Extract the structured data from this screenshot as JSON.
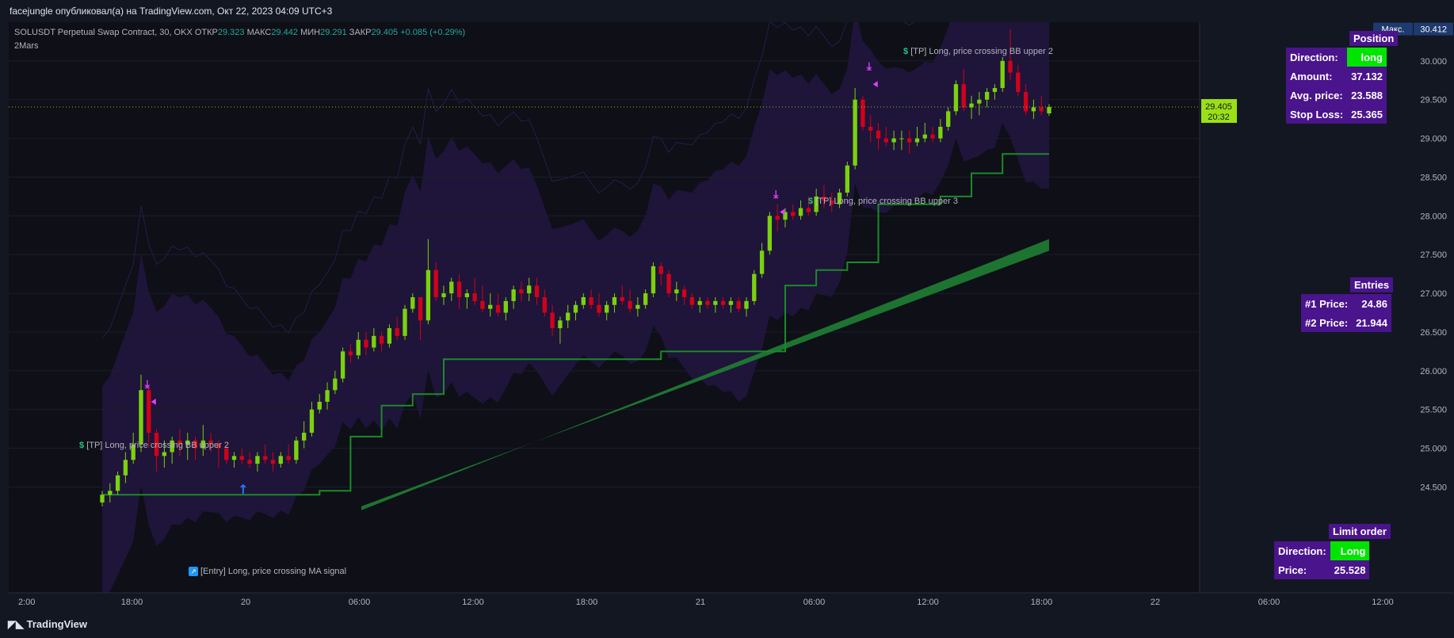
{
  "caption": "facejungle опубликовал(а) на TradingView.com, Окт 22, 2023 04:09 UTC+3",
  "legend": {
    "symbol": "SOLUSDT Perpetual Swap Contract, 30, OKX",
    "open_label": "ОТКР",
    "open": "29.323",
    "high_label": "МАКС",
    "high": "29.442",
    "low_label": "МИН",
    "low": "29.291",
    "close_label": "ЗАКР",
    "close": "29.405",
    "change": "+0.085 (+0.29%)"
  },
  "indicator_name": "2Mars",
  "annotations": {
    "tp1": "[TP] Long, price crossing BB upper 2",
    "entry": "[Entry] Long, price crossing MA signal",
    "tp2": "[TP] Long, price crossing BB upper 3",
    "tp3": "[TP] Long, price crossing BB upper 2",
    "dollar": "$",
    "entry_icon": "↗"
  },
  "position_panel": {
    "title": "Position",
    "rows": [
      {
        "label": "Direction:",
        "value": "long"
      },
      {
        "label": "Amount:",
        "value": "37.132"
      },
      {
        "label": "Avg. price:",
        "value": "23.588"
      },
      {
        "label": "Stop Loss:",
        "value": "25.365"
      }
    ]
  },
  "entries_panel": {
    "title": "Entries",
    "rows": [
      {
        "label": "#1 Price:",
        "value": "24.86"
      },
      {
        "label": "#2 Price:",
        "value": "21.944"
      }
    ]
  },
  "limit_panel": {
    "title": "Limit order",
    "rows": [
      {
        "label": "Direction:",
        "value": "Long"
      },
      {
        "label": "Price:",
        "value": "25.528"
      }
    ]
  },
  "brand": "TradingView",
  "colors": {
    "background": "#0e0f17",
    "candle_up": "#7bd10e",
    "candle_down": "#d0021b",
    "trail_line": "#1b8a2a",
    "ma_ribbon": "#1f7a32",
    "bb_band": "#2d1a55",
    "panel_bg": "#4a148c",
    "highlight_green": "#00e500",
    "tp_marker": "#e040fb",
    "entry_arrow": "#2979ff"
  },
  "chart_data": {
    "type": "candlestick",
    "timeframe": "30",
    "y_axis": {
      "ticks": [
        "30.000",
        "29.500",
        "29.000",
        "28.500",
        "28.000",
        "27.500",
        "27.000",
        "26.500",
        "26.000",
        "25.500",
        "25.000",
        "24.500"
      ],
      "ylim": [
        24.3,
        30.5
      ],
      "max_label": "Макс.",
      "max_value": "30.412",
      "last_price": "29.405",
      "countdown": "20:32"
    },
    "x_axis": {
      "ticks": [
        "2:00",
        "18:00",
        "20",
        "06:00",
        "12:00",
        "18:00",
        "21",
        "06:00",
        "12:00",
        "18:00",
        "22",
        "06:00",
        "12:00"
      ]
    },
    "candles": [
      [
        24.3,
        24.45,
        24.25,
        24.4
      ],
      [
        24.4,
        24.55,
        24.3,
        24.45
      ],
      [
        24.45,
        24.7,
        24.4,
        24.65
      ],
      [
        24.65,
        24.95,
        24.55,
        24.85
      ],
      [
        24.85,
        25.2,
        24.8,
        25.05
      ],
      [
        25.05,
        25.95,
        24.95,
        25.75
      ],
      [
        25.75,
        25.8,
        25.0,
        25.2
      ],
      [
        25.2,
        25.25,
        24.7,
        24.9
      ],
      [
        24.9,
        25.1,
        24.75,
        24.95
      ],
      [
        24.95,
        25.15,
        24.8,
        25.1
      ],
      [
        25.1,
        25.25,
        24.9,
        25.05
      ],
      [
        25.05,
        25.2,
        24.85,
        25.1
      ],
      [
        25.1,
        25.15,
        24.85,
        25.0
      ],
      [
        25.0,
        25.3,
        24.9,
        25.1
      ],
      [
        25.1,
        25.2,
        24.95,
        25.05
      ],
      [
        25.05,
        25.1,
        24.75,
        25.0
      ],
      [
        25.0,
        25.05,
        24.8,
        24.85
      ],
      [
        24.85,
        24.95,
        24.75,
        24.9
      ],
      [
        24.9,
        25.0,
        24.8,
        24.85
      ],
      [
        24.85,
        24.95,
        24.75,
        24.8
      ],
      [
        24.8,
        24.95,
        24.7,
        24.9
      ],
      [
        24.9,
        25.05,
        24.8,
        24.85
      ],
      [
        24.85,
        24.95,
        24.7,
        24.8
      ],
      [
        24.8,
        24.95,
        24.75,
        24.9
      ],
      [
        24.9,
        25.05,
        24.8,
        24.85
      ],
      [
        24.85,
        25.15,
        24.8,
        25.1
      ],
      [
        25.1,
        25.35,
        25.0,
        25.2
      ],
      [
        25.2,
        25.6,
        25.15,
        25.5
      ],
      [
        25.5,
        25.7,
        25.45,
        25.6
      ],
      [
        25.6,
        25.85,
        25.5,
        25.75
      ],
      [
        25.75,
        26.0,
        25.7,
        25.9
      ],
      [
        25.9,
        26.3,
        25.85,
        26.25
      ],
      [
        26.25,
        26.35,
        26.1,
        26.2
      ],
      [
        26.2,
        26.5,
        26.15,
        26.4
      ],
      [
        26.4,
        26.5,
        26.2,
        26.3
      ],
      [
        26.3,
        26.55,
        26.25,
        26.45
      ],
      [
        26.45,
        26.5,
        26.25,
        26.35
      ],
      [
        26.35,
        26.6,
        26.3,
        26.55
      ],
      [
        26.55,
        26.7,
        26.4,
        26.45
      ],
      [
        26.45,
        26.85,
        26.4,
        26.8
      ],
      [
        26.8,
        27.0,
        26.75,
        26.95
      ],
      [
        26.95,
        26.95,
        26.4,
        26.65
      ],
      [
        26.65,
        27.7,
        26.6,
        27.3
      ],
      [
        27.3,
        27.4,
        26.9,
        26.95
      ],
      [
        26.95,
        27.1,
        26.85,
        27.0
      ],
      [
        27.0,
        27.2,
        26.9,
        27.15
      ],
      [
        27.15,
        27.25,
        26.8,
        26.95
      ],
      [
        26.95,
        27.05,
        26.8,
        27.0
      ],
      [
        27.0,
        27.2,
        26.85,
        26.9
      ],
      [
        26.9,
        27.1,
        26.75,
        26.8
      ],
      [
        26.8,
        27.0,
        26.7,
        26.85
      ],
      [
        26.85,
        27.0,
        26.7,
        26.75
      ],
      [
        26.75,
        26.95,
        26.65,
        26.9
      ],
      [
        26.9,
        27.1,
        26.8,
        27.05
      ],
      [
        27.05,
        27.15,
        26.9,
        27.0
      ],
      [
        27.0,
        27.2,
        26.9,
        27.1
      ],
      [
        27.1,
        27.2,
        26.85,
        26.95
      ],
      [
        26.95,
        27.05,
        26.7,
        26.75
      ],
      [
        26.75,
        26.85,
        26.45,
        26.55
      ],
      [
        26.55,
        26.7,
        26.35,
        26.65
      ],
      [
        26.65,
        26.85,
        26.55,
        26.75
      ],
      [
        26.75,
        26.9,
        26.65,
        26.85
      ],
      [
        26.85,
        27.0,
        26.8,
        26.95
      ],
      [
        26.95,
        27.05,
        26.8,
        26.85
      ],
      [
        26.85,
        27.0,
        26.7,
        26.75
      ],
      [
        26.75,
        26.9,
        26.65,
        26.85
      ],
      [
        26.85,
        27.0,
        26.75,
        26.95
      ],
      [
        26.95,
        27.1,
        26.85,
        26.9
      ],
      [
        26.9,
        27.05,
        26.75,
        26.8
      ],
      [
        26.8,
        26.95,
        26.7,
        26.85
      ],
      [
        26.85,
        27.05,
        26.8,
        27.0
      ],
      [
        27.0,
        27.4,
        26.95,
        27.35
      ],
      [
        27.35,
        27.4,
        27.1,
        27.25
      ],
      [
        27.25,
        27.3,
        26.95,
        27.0
      ],
      [
        27.0,
        27.15,
        26.9,
        27.05
      ],
      [
        27.05,
        27.1,
        26.85,
        26.95
      ],
      [
        26.95,
        27.0,
        26.8,
        26.85
      ],
      [
        26.85,
        26.95,
        26.75,
        26.9
      ],
      [
        26.9,
        26.95,
        26.8,
        26.85
      ],
      [
        26.85,
        26.95,
        26.75,
        26.9
      ],
      [
        26.9,
        26.95,
        26.8,
        26.85
      ],
      [
        26.85,
        26.95,
        26.75,
        26.9
      ],
      [
        26.9,
        26.95,
        26.75,
        26.8
      ],
      [
        26.8,
        26.95,
        26.7,
        26.9
      ],
      [
        26.9,
        27.3,
        26.85,
        27.25
      ],
      [
        27.25,
        27.65,
        27.2,
        27.55
      ],
      [
        27.55,
        28.05,
        27.5,
        28.0
      ],
      [
        28.0,
        28.15,
        27.8,
        27.95
      ],
      [
        27.95,
        28.1,
        27.85,
        28.05
      ],
      [
        28.05,
        28.15,
        27.95,
        28.0
      ],
      [
        28.0,
        28.2,
        27.95,
        28.1
      ],
      [
        28.1,
        28.25,
        28.0,
        28.05
      ],
      [
        28.05,
        28.35,
        28.0,
        28.25
      ],
      [
        28.25,
        28.4,
        28.1,
        28.2
      ],
      [
        28.2,
        28.3,
        28.05,
        28.15
      ],
      [
        28.15,
        28.35,
        28.1,
        28.3
      ],
      [
        28.3,
        28.7,
        28.25,
        28.65
      ],
      [
        28.65,
        29.65,
        28.6,
        29.5
      ],
      [
        29.5,
        29.55,
        29.1,
        29.15
      ],
      [
        29.15,
        29.3,
        28.95,
        29.1
      ],
      [
        29.1,
        29.2,
        28.85,
        29.0
      ],
      [
        29.0,
        29.15,
        28.9,
        28.95
      ],
      [
        28.95,
        29.1,
        28.85,
        29.0
      ],
      [
        29.0,
        29.1,
        28.85,
        29.0
      ],
      [
        29.0,
        29.1,
        28.8,
        28.95
      ],
      [
        28.95,
        29.15,
        28.9,
        29.0
      ],
      [
        29.0,
        29.2,
        28.95,
        29.05
      ],
      [
        29.05,
        29.15,
        28.95,
        29.0
      ],
      [
        29.0,
        29.25,
        28.95,
        29.15
      ],
      [
        29.15,
        29.4,
        29.1,
        29.35
      ],
      [
        29.35,
        29.75,
        29.3,
        29.7
      ],
      [
        29.7,
        29.9,
        29.35,
        29.4
      ],
      [
        29.4,
        29.55,
        29.25,
        29.45
      ],
      [
        29.45,
        29.6,
        29.3,
        29.5
      ],
      [
        29.5,
        29.65,
        29.4,
        29.6
      ],
      [
        29.6,
        29.7,
        29.5,
        29.65
      ],
      [
        29.65,
        30.05,
        29.6,
        30.0
      ],
      [
        30.0,
        30.41,
        29.75,
        29.85
      ],
      [
        29.85,
        29.95,
        29.55,
        29.6
      ],
      [
        29.6,
        29.7,
        29.3,
        29.35
      ],
      [
        29.35,
        29.5,
        29.25,
        29.4
      ],
      [
        29.4,
        29.55,
        29.3,
        29.35
      ],
      [
        29.323,
        29.442,
        29.291,
        29.405
      ]
    ],
    "entry_level": 24.4,
    "ma_ribbon_start": [
      24.2,
      24.25
    ],
    "ma_ribbon_end": [
      27.7,
      27.55
    ],
    "tp_markers": [
      [
        6,
        25.6
      ],
      [
        87,
        28.05
      ],
      [
        99,
        29.7
      ]
    ],
    "entry_marker": [
      18,
      24.7
    ]
  }
}
